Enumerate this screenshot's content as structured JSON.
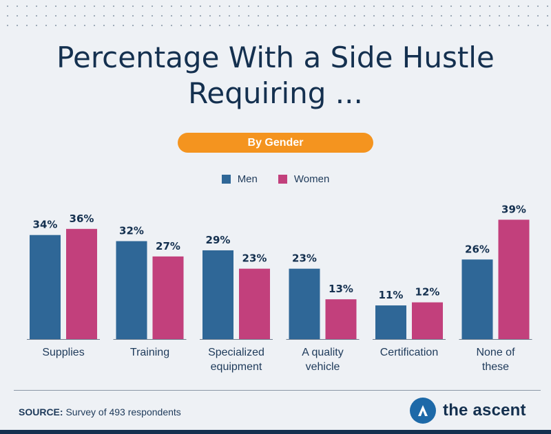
{
  "header": {
    "title_line1": "Percentage With a Side Hustle",
    "title_line2": "Requiring ...",
    "subtitle_pill": "By Gender"
  },
  "colors": {
    "men": "#2f6797",
    "women": "#c2407c",
    "accent": "#f4941f",
    "text": "#14304f"
  },
  "chart_data": {
    "type": "bar",
    "title": "Percentage With a Side Hustle Requiring ...",
    "subtitle": "By Gender",
    "categories": [
      [
        "Supplies"
      ],
      [
        "Training"
      ],
      [
        "Specialized",
        "equipment"
      ],
      [
        "A quality",
        "vehicle"
      ],
      [
        "Certification"
      ],
      [
        "None of",
        "these"
      ]
    ],
    "series": [
      {
        "name": "Men",
        "values": [
          34,
          32,
          29,
          23,
          11,
          26
        ],
        "labels": [
          "34%",
          "32%",
          "29%",
          "23%",
          "11%",
          "26%"
        ]
      },
      {
        "name": "Women",
        "values": [
          36,
          27,
          23,
          13,
          12,
          39
        ],
        "labels": [
          "36%",
          "27%",
          "23%",
          "13%",
          "12%",
          "39%"
        ]
      }
    ],
    "ylim": [
      0,
      45
    ],
    "grid": false,
    "legend_position": "top-center"
  },
  "footer": {
    "source_label": "SOURCE:",
    "source_text": " Survey of 493 respondents",
    "brand": "the ascent",
    "brand_icon": "ascent-arrow-icon"
  }
}
